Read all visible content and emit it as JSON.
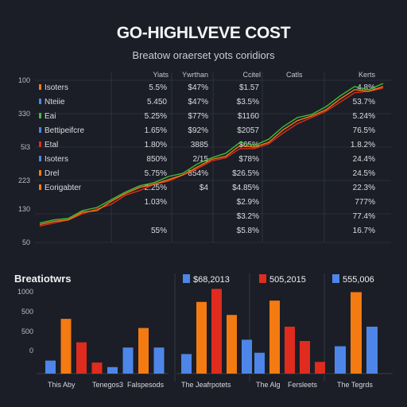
{
  "header": {
    "title": "GO-HIGHLVEVE COST",
    "subtitle": "Breatow oraerset yots coridiors"
  },
  "colors": {
    "background": "#1b1e26",
    "green": "#3fbf3a",
    "red": "#e02b1f",
    "orange": "#f47a12",
    "blue": "#4d86e8",
    "grid": "#3a3f4c"
  },
  "chart_data": [
    {
      "type": "line",
      "title": "GO-HIGHLVEVE COST",
      "subtitle": "Breatow oraerset yots coridiors",
      "y_tick_labels": [
        "100",
        "330",
        "5l3",
        "223",
        "130",
        "50"
      ],
      "column_headers": [
        "Yiats",
        "Ywrthan",
        "Ccitel",
        "Catls"
      ],
      "right_header": "Kerts",
      "series": [
        {
          "color": "#3fbf3a",
          "values": [
            10,
            12,
            13,
            18,
            20,
            25,
            30,
            34,
            36,
            40,
            42,
            48,
            52,
            55,
            62,
            60,
            64,
            72,
            78,
            80,
            85,
            92,
            98,
            96,
            100
          ]
        },
        {
          "color": "#e02b1f",
          "values": [
            8,
            10,
            12,
            16,
            19,
            22,
            28,
            31,
            35,
            37,
            41,
            45,
            50,
            52,
            58,
            58,
            61,
            68,
            74,
            78,
            82,
            88,
            94,
            95,
            97
          ]
        },
        {
          "color": "#f47a12",
          "values": [
            9,
            11,
            12,
            17,
            18,
            24,
            29,
            33,
            35,
            38,
            41,
            46,
            51,
            53,
            60,
            59,
            62,
            70,
            76,
            79,
            83,
            90,
            96,
            95,
            98
          ]
        }
      ],
      "rows": [
        {
          "name": "Isoters",
          "color": "#f47a12",
          "cells": [
            "5.5%",
            "$47%",
            "$1.57",
            "4.8%"
          ]
        },
        {
          "name": "Nteiie",
          "color": "#4d86e8",
          "cells": [
            "5.450",
            "$47%",
            "$3.5%",
            "53.7%"
          ]
        },
        {
          "name": "Eai",
          "color": "#3fbf3a",
          "cells": [
            "5.25%",
            "$77%",
            "$1160",
            "5.24%"
          ]
        },
        {
          "name": "Bettipeifcre",
          "color": "#4d86e8",
          "cells": [
            "1.65%",
            "$92%",
            "$2057",
            "76.5%"
          ]
        },
        {
          "name": "Etal",
          "color": "#e02b1f",
          "cells": [
            "1.80%",
            "3885",
            "$65%",
            "1.8.2%"
          ]
        },
        {
          "name": "Isoters",
          "color": "#4d86e8",
          "cells": [
            "850%",
            "2/15",
            "$78%",
            "24.4%"
          ]
        },
        {
          "name": "Drel",
          "color": "#f47a12",
          "cells": [
            "5.75%",
            "854%",
            "$26.5%",
            "24.5%"
          ]
        },
        {
          "name": "Eorigabter",
          "color": "#f47a12",
          "cells": [
            "2.25%",
            "$4",
            "$4.85%",
            "22.3%"
          ]
        },
        {
          "name": "",
          "color": "",
          "cells": [
            "1.03%",
            "",
            "$2.9%",
            "777%"
          ]
        },
        {
          "name": "",
          "color": "",
          "cells": [
            "",
            "",
            "$3.2%",
            "77.4%"
          ]
        },
        {
          "name": "",
          "color": "",
          "cells": [
            "55%",
            "",
            "$5.8%",
            "16.7%"
          ]
        }
      ]
    },
    {
      "type": "bar",
      "title": "Breatiotwrs",
      "y_tick_labels": [
        "1000",
        "500",
        "500",
        "0"
      ],
      "xlabel": "This Aby",
      "xlabel2": "Tenegos3",
      "series": [
        {
          "color": "#4d86e8",
          "values": [
            20,
            10,
            40
          ]
        },
        {
          "color": "#f47a12",
          "values": [
            84,
            66
          ]
        },
        {
          "color": "#e02b1f",
          "values": [
            48,
            17
          ]
        }
      ],
      "bars": [
        {
          "color": "#4d86e8",
          "value": 20
        },
        {
          "color": "#f47a12",
          "value": 84
        },
        {
          "color": "#e02b1f",
          "value": 48
        },
        {
          "color": "#e02b1f",
          "value": 17
        },
        {
          "color": "#4d86e8",
          "value": 10
        },
        {
          "color": "#4d86e8",
          "value": 40
        },
        {
          "color": "#f47a12",
          "value": 70
        },
        {
          "color": "#4d86e8",
          "value": 40
        }
      ],
      "xlabel3": "Falspesods"
    },
    {
      "type": "bar",
      "legend": "$68,2013",
      "legend_color": "#4d86e8",
      "bars": [
        {
          "color": "#4d86e8",
          "value": 30
        },
        {
          "color": "#f47a12",
          "value": 110
        },
        {
          "color": "#e02b1f",
          "value": 130
        },
        {
          "color": "#f47a12",
          "value": 90
        },
        {
          "color": "#4d86e8",
          "value": 52
        }
      ],
      "xlabel": "The Jeafrpotets"
    },
    {
      "type": "bar",
      "legend": "505,2015",
      "legend_color": "#e02b1f",
      "bars": [
        {
          "color": "#4d86e8",
          "value": 32
        },
        {
          "color": "#f47a12",
          "value": 112
        },
        {
          "color": "#e02b1f",
          "value": 72
        },
        {
          "color": "#e02b1f",
          "value": 50
        },
        {
          "color": "#e02b1f",
          "value": 18
        }
      ],
      "xlabel": "The Alg",
      "xlabel2": "Fersleets"
    },
    {
      "type": "bar",
      "legend": "555,006",
      "legend_color": "#4d86e8",
      "bars": [
        {
          "color": "#4d86e8",
          "value": 42
        },
        {
          "color": "#f47a12",
          "value": 125
        },
        {
          "color": "#4d86e8",
          "value": 72
        }
      ],
      "xlabel": "The Tegrds"
    }
  ]
}
